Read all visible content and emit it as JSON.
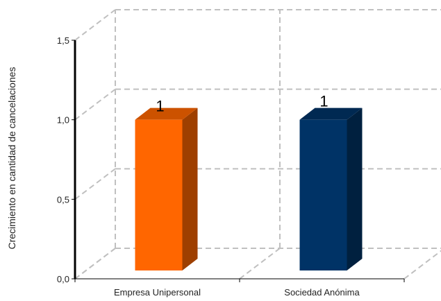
{
  "chart_data": {
    "type": "bar",
    "categories": [
      "Empresa Unipersonal",
      "Sociedad Anónima"
    ],
    "values": [
      1,
      1
    ],
    "data_labels": [
      "1",
      "1"
    ],
    "ylabel": "Crecimiento en cantidad de cancelaciones",
    "ylim": [
      0,
      1.5
    ],
    "yticks": [
      0,
      0.5,
      1.0,
      1.5
    ],
    "ytick_labels": [
      "0,0",
      "0,5",
      "1,0",
      "1,5"
    ],
    "grid": true,
    "style": "3d",
    "colors": {
      "bars": [
        "#FF6600",
        "#003366"
      ],
      "grid": "#C0C0C0"
    }
  }
}
